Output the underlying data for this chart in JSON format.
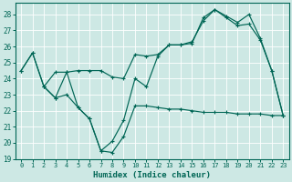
{
  "xlabel": "Humidex (Indice chaleur)",
  "bg_color": "#cde8e4",
  "line_color": "#006655",
  "xlim": [
    -0.5,
    23.5
  ],
  "ylim": [
    19,
    28.7
  ],
  "yticks": [
    19,
    20,
    21,
    22,
    23,
    24,
    25,
    26,
    27,
    28
  ],
  "xticks": [
    0,
    1,
    2,
    3,
    4,
    5,
    6,
    7,
    8,
    9,
    10,
    11,
    12,
    13,
    14,
    15,
    16,
    17,
    18,
    19,
    20,
    21,
    22,
    23
  ],
  "line1_x": [
    0,
    1,
    2,
    3,
    4,
    5,
    6,
    7,
    8,
    9,
    10,
    11,
    12,
    13,
    14,
    15,
    16,
    17,
    18,
    19,
    20,
    21,
    22,
    23
  ],
  "line1_y": [
    24.5,
    25.6,
    23.5,
    22.8,
    24.4,
    22.2,
    21.5,
    19.5,
    20.1,
    21.4,
    24.0,
    23.5,
    25.4,
    26.1,
    26.1,
    26.2,
    27.8,
    28.3,
    27.8,
    27.3,
    27.4,
    26.4,
    24.5,
    21.7
  ],
  "line2_x": [
    0,
    1,
    2,
    3,
    4,
    5,
    6,
    7,
    8,
    9,
    10,
    11,
    12,
    13,
    14,
    15,
    16,
    17,
    18,
    19,
    20,
    21,
    22,
    23
  ],
  "line2_y": [
    24.5,
    25.6,
    23.5,
    24.4,
    24.4,
    24.5,
    24.5,
    24.5,
    24.1,
    24.0,
    25.5,
    25.4,
    25.5,
    26.1,
    26.1,
    26.3,
    27.6,
    28.3,
    27.9,
    27.5,
    28.0,
    26.5,
    24.5,
    21.7
  ],
  "line3_x": [
    2,
    3,
    4,
    5,
    6,
    7,
    8,
    9,
    10,
    11,
    12,
    13,
    14,
    15,
    16,
    17,
    18,
    19,
    20,
    21,
    22,
    23
  ],
  "line3_y": [
    23.5,
    22.8,
    23.0,
    22.2,
    21.5,
    19.5,
    19.4,
    20.4,
    22.3,
    22.3,
    22.2,
    22.1,
    22.1,
    22.0,
    21.9,
    21.9,
    21.9,
    21.8,
    21.8,
    21.8,
    21.7,
    21.7
  ]
}
